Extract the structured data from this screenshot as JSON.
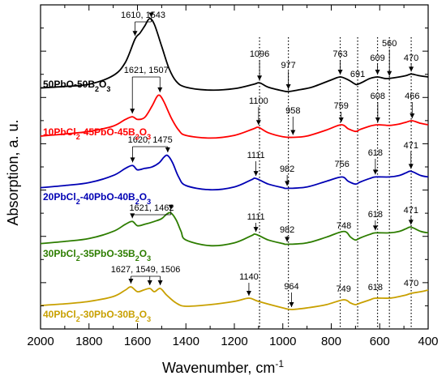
{
  "chart_data": {
    "type": "line",
    "xlabel": "Wavenumber, cm",
    "xlabel_sup": "-1",
    "ylabel": "Absorption, a. u.",
    "xlim": [
      2000,
      400
    ],
    "x_ticks": [
      2000,
      1800,
      1600,
      1400,
      1200,
      1000,
      800,
      600,
      400
    ],
    "x_reversed": true,
    "y_tick_labels_shown": false,
    "grid": false,
    "series": [
      {
        "name": "50PbO-50B2O3",
        "label_main": "50PbO-50B",
        "label_sub": "2",
        "label_end": "O",
        "label_sub2": "3",
        "color": "#000000",
        "baseline_wavenumber_offset_au": 0,
        "points": [
          [
            2000,
            0.05
          ],
          [
            1900,
            0.07
          ],
          [
            1800,
            0.1
          ],
          [
            1700,
            0.22
          ],
          [
            1650,
            0.4
          ],
          [
            1610,
            0.72
          ],
          [
            1590,
            0.8
          ],
          [
            1570,
            0.9
          ],
          [
            1550,
            1.0
          ],
          [
            1530,
            0.92
          ],
          [
            1500,
            0.62
          ],
          [
            1470,
            0.32
          ],
          [
            1440,
            0.14
          ],
          [
            1400,
            0.06
          ],
          [
            1300,
            0.02
          ],
          [
            1200,
            0.04
          ],
          [
            1120,
            0.1
          ],
          [
            1096,
            0.12
          ],
          [
            1060,
            0.06
          ],
          [
            1000,
            0.01
          ],
          [
            977,
            0.0
          ],
          [
            940,
            0.02
          ],
          [
            880,
            0.06
          ],
          [
            800,
            0.16
          ],
          [
            763,
            0.2
          ],
          [
            730,
            0.16
          ],
          [
            700,
            0.1
          ],
          [
            691,
            0.1
          ],
          [
            670,
            0.13
          ],
          [
            640,
            0.18
          ],
          [
            609,
            0.2
          ],
          [
            580,
            0.18
          ],
          [
            560,
            0.18
          ],
          [
            520,
            0.2
          ],
          [
            490,
            0.22
          ],
          [
            470,
            0.24
          ],
          [
            440,
            0.22
          ],
          [
            400,
            0.2
          ]
        ]
      },
      {
        "name": "10PbCl2-45PbO-45B2O3",
        "label_main": "10PbCl",
        "label_sub": "2",
        "label_end": "-45PbO-45B",
        "label_sub2": "2",
        "label_end2": "O",
        "label_sub3": "3",
        "color": "#ff0000",
        "points": [
          [
            2000,
            0.05
          ],
          [
            1900,
            0.08
          ],
          [
            1800,
            0.12
          ],
          [
            1700,
            0.2
          ],
          [
            1650,
            0.3
          ],
          [
            1621,
            0.34
          ],
          [
            1600,
            0.3
          ],
          [
            1570,
            0.33
          ],
          [
            1540,
            0.5
          ],
          [
            1520,
            0.64
          ],
          [
            1507,
            0.66
          ],
          [
            1490,
            0.56
          ],
          [
            1460,
            0.32
          ],
          [
            1430,
            0.14
          ],
          [
            1400,
            0.06
          ],
          [
            1300,
            0.02
          ],
          [
            1200,
            0.06
          ],
          [
            1120,
            0.16
          ],
          [
            1100,
            0.18
          ],
          [
            1060,
            0.1
          ],
          [
            1000,
            0.04
          ],
          [
            958,
            0.03
          ],
          [
            900,
            0.05
          ],
          [
            820,
            0.14
          ],
          [
            759,
            0.22
          ],
          [
            730,
            0.16
          ],
          [
            700,
            0.12
          ],
          [
            680,
            0.15
          ],
          [
            640,
            0.2
          ],
          [
            608,
            0.22
          ],
          [
            560,
            0.21
          ],
          [
            520,
            0.23
          ],
          [
            490,
            0.26
          ],
          [
            466,
            0.28
          ],
          [
            430,
            0.24
          ],
          [
            400,
            0.22
          ]
        ]
      },
      {
        "name": "20PbCl2-40PbO-40B2O3",
        "label_main": "20PbCl",
        "label_sub": "2",
        "label_end": "-40PbO-40B",
        "label_sub2": "2",
        "label_end2": "O",
        "label_sub3": "3",
        "color": "#0000b4",
        "points": [
          [
            2000,
            0.05
          ],
          [
            1900,
            0.08
          ],
          [
            1800,
            0.12
          ],
          [
            1700,
            0.22
          ],
          [
            1650,
            0.32
          ],
          [
            1620,
            0.36
          ],
          [
            1600,
            0.3
          ],
          [
            1570,
            0.32
          ],
          [
            1540,
            0.34
          ],
          [
            1510,
            0.4
          ],
          [
            1490,
            0.48
          ],
          [
            1475,
            0.5
          ],
          [
            1455,
            0.4
          ],
          [
            1430,
            0.2
          ],
          [
            1400,
            0.08
          ],
          [
            1300,
            0.02
          ],
          [
            1200,
            0.06
          ],
          [
            1130,
            0.16
          ],
          [
            1111,
            0.18
          ],
          [
            1060,
            0.1
          ],
          [
            1000,
            0.05
          ],
          [
            982,
            0.04
          ],
          [
            900,
            0.06
          ],
          [
            820,
            0.14
          ],
          [
            756,
            0.2
          ],
          [
            730,
            0.14
          ],
          [
            700,
            0.1
          ],
          [
            680,
            0.13
          ],
          [
            640,
            0.18
          ],
          [
            618,
            0.2
          ],
          [
            560,
            0.2
          ],
          [
            520,
            0.22
          ],
          [
            490,
            0.26
          ],
          [
            471,
            0.28
          ],
          [
            430,
            0.22
          ],
          [
            400,
            0.2
          ]
        ]
      },
      {
        "name": "30PbCl2-35PbO-35B2O3",
        "label_main": "30PbCl",
        "label_sub": "2",
        "label_end": "-35PbO-35B",
        "label_sub2": "2",
        "label_end2": "O",
        "label_sub3": "3",
        "color": "#2d7d00",
        "points": [
          [
            2000,
            0.05
          ],
          [
            1900,
            0.08
          ],
          [
            1800,
            0.12
          ],
          [
            1700,
            0.22
          ],
          [
            1650,
            0.32
          ],
          [
            1621,
            0.36
          ],
          [
            1600,
            0.3
          ],
          [
            1570,
            0.32
          ],
          [
            1530,
            0.36
          ],
          [
            1500,
            0.4
          ],
          [
            1480,
            0.46
          ],
          [
            1462,
            0.48
          ],
          [
            1440,
            0.38
          ],
          [
            1420,
            0.22
          ],
          [
            1400,
            0.1
          ],
          [
            1300,
            0.02
          ],
          [
            1200,
            0.06
          ],
          [
            1130,
            0.16
          ],
          [
            1111,
            0.18
          ],
          [
            1060,
            0.1
          ],
          [
            1000,
            0.05
          ],
          [
            982,
            0.04
          ],
          [
            900,
            0.06
          ],
          [
            820,
            0.14
          ],
          [
            748,
            0.22
          ],
          [
            720,
            0.14
          ],
          [
            700,
            0.1
          ],
          [
            680,
            0.13
          ],
          [
            640,
            0.18
          ],
          [
            618,
            0.2
          ],
          [
            560,
            0.2
          ],
          [
            520,
            0.22
          ],
          [
            490,
            0.26
          ],
          [
            471,
            0.28
          ],
          [
            430,
            0.22
          ],
          [
            400,
            0.2
          ]
        ]
      },
      {
        "name": "40PbCl2-30PbO-30B2O3",
        "label_main": "40PbCl",
        "label_sub": "2",
        "label_end": "-30PbO-30B",
        "label_sub2": "2",
        "label_end2": "O",
        "label_sub3": "3",
        "color": "#c8a000",
        "points": [
          [
            2000,
            0.05
          ],
          [
            1900,
            0.07
          ],
          [
            1800,
            0.1
          ],
          [
            1700,
            0.16
          ],
          [
            1650,
            0.24
          ],
          [
            1627,
            0.28
          ],
          [
            1600,
            0.22
          ],
          [
            1575,
            0.24
          ],
          [
            1549,
            0.26
          ],
          [
            1530,
            0.22
          ],
          [
            1506,
            0.26
          ],
          [
            1480,
            0.18
          ],
          [
            1440,
            0.08
          ],
          [
            1400,
            0.04
          ],
          [
            1300,
            0.06
          ],
          [
            1200,
            0.1
          ],
          [
            1140,
            0.14
          ],
          [
            1100,
            0.1
          ],
          [
            1000,
            0.02
          ],
          [
            964,
            0.0
          ],
          [
            900,
            0.02
          ],
          [
            820,
            0.06
          ],
          [
            749,
            0.12
          ],
          [
            720,
            0.08
          ],
          [
            700,
            0.06
          ],
          [
            680,
            0.08
          ],
          [
            640,
            0.12
          ],
          [
            618,
            0.14
          ],
          [
            560,
            0.14
          ],
          [
            520,
            0.16
          ],
          [
            490,
            0.18
          ],
          [
            470,
            0.2
          ],
          [
            430,
            0.22
          ],
          [
            400,
            0.24
          ]
        ]
      }
    ],
    "annotations": [
      {
        "text": "1610, 1543",
        "arrows_at": [
          1610,
          1543
        ],
        "series": 0,
        "kind": "bracket"
      },
      {
        "text": "1096",
        "arrows_at": [
          1096
        ],
        "series": 0
      },
      {
        "text": "977",
        "arrows_at": [
          977
        ],
        "series": 0
      },
      {
        "text": "763",
        "arrows_at": [
          763
        ],
        "series": 0
      },
      {
        "text": "691",
        "arrows_at": [
          691
        ],
        "series": 0
      },
      {
        "text": "560",
        "arrows_at": [
          560
        ],
        "series": 0
      },
      {
        "text": "609",
        "arrows_at": [
          609
        ],
        "series": 0
      },
      {
        "text": "470",
        "arrows_at": [
          470
        ],
        "series": 0
      },
      {
        "text": "1621, 1507",
        "arrows_at": [
          1621,
          1507
        ],
        "series": 1,
        "kind": "bracket"
      },
      {
        "text": "1100",
        "arrows_at": [
          1100
        ],
        "series": 1
      },
      {
        "text": "958",
        "arrows_at": [
          958
        ],
        "series": 1
      },
      {
        "text": "759",
        "arrows_at": [
          759
        ],
        "series": 1
      },
      {
        "text": "608",
        "arrows_at": [
          608
        ],
        "series": 1
      },
      {
        "text": "466",
        "arrows_at": [
          466
        ],
        "series": 1
      },
      {
        "text": "1620, 1475",
        "arrows_at": [
          1620,
          1475
        ],
        "series": 2,
        "kind": "bracket"
      },
      {
        "text": "1111",
        "arrows_at": [
          1111
        ],
        "series": 2
      },
      {
        "text": "982",
        "arrows_at": [
          982
        ],
        "series": 2
      },
      {
        "text": "756",
        "arrows_at": [
          756
        ],
        "series": 2
      },
      {
        "text": "618",
        "arrows_at": [
          618
        ],
        "series": 2
      },
      {
        "text": "471",
        "arrows_at": [
          471
        ],
        "series": 2
      },
      {
        "text": "1621, 1462",
        "arrows_at": [
          1621,
          1462
        ],
        "series": 3,
        "kind": "bracket"
      },
      {
        "text": "1111",
        "arrows_at": [
          1111
        ],
        "series": 3
      },
      {
        "text": "982",
        "arrows_at": [
          982
        ],
        "series": 3
      },
      {
        "text": "748",
        "arrows_at": [
          748
        ],
        "series": 3
      },
      {
        "text": "618",
        "arrows_at": [
          618
        ],
        "series": 3
      },
      {
        "text": "471",
        "arrows_at": [
          471
        ],
        "series": 3
      },
      {
        "text": "1627, 1549, 1506",
        "arrows_at": [
          1627,
          1549,
          1506
        ],
        "series": 4,
        "kind": "bracket"
      },
      {
        "text": "1140",
        "arrows_at": [
          1140
        ],
        "series": 4
      },
      {
        "text": "964",
        "arrows_at": [
          964
        ],
        "series": 4
      },
      {
        "text": "749",
        "arrows_at": [
          749
        ],
        "series": 4
      },
      {
        "text": "618",
        "arrows_at": [
          618
        ],
        "series": 4
      },
      {
        "text": "470",
        "arrows_at": [
          470
        ],
        "series": 4
      }
    ],
    "dotted_reference_lines": [
      1096,
      977,
      763,
      691,
      609,
      560,
      470
    ]
  }
}
